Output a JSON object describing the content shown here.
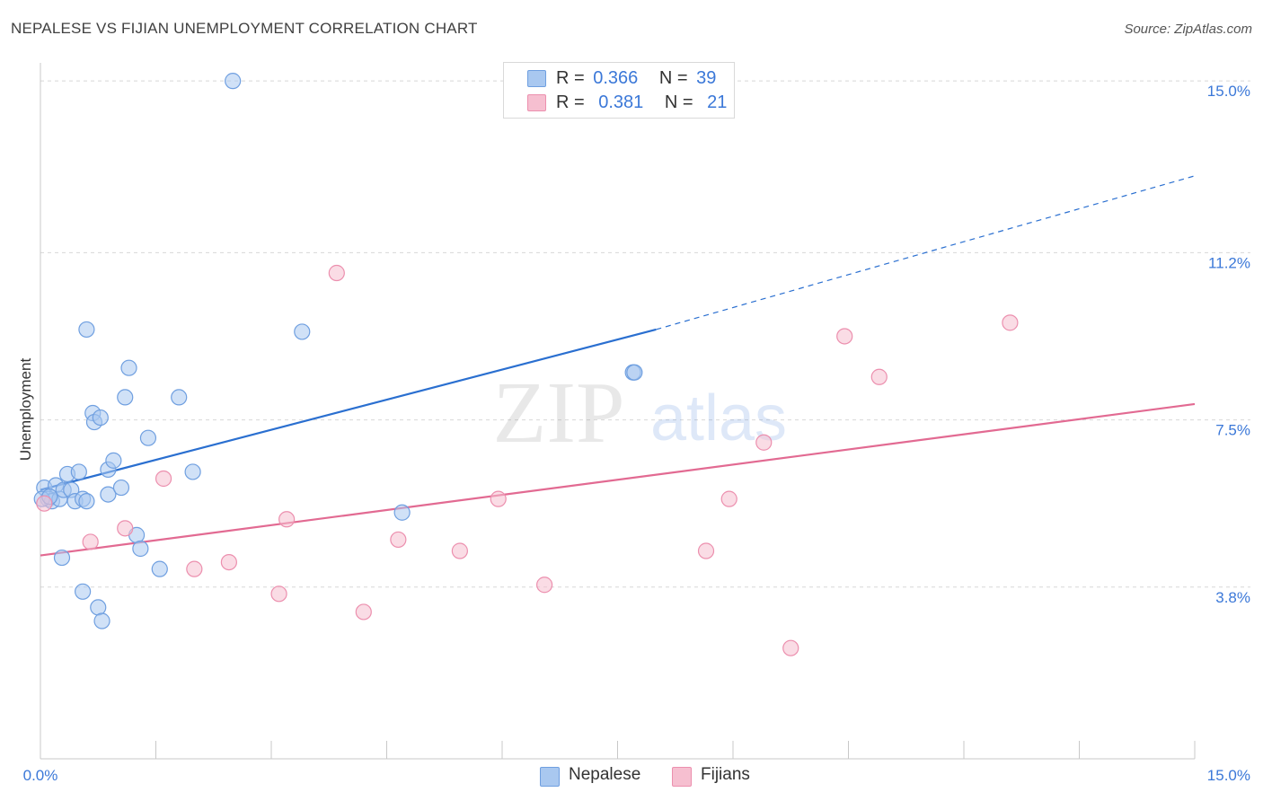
{
  "header": {
    "title": "NEPALESE VS FIJIAN UNEMPLOYMENT CORRELATION CHART",
    "source": "Source: ZipAtlas.com"
  },
  "watermark": {
    "zip": "ZIP",
    "atlas": "atlas"
  },
  "legend": {
    "nepalese": {
      "r_label": "R =",
      "r_value": "0.366",
      "n_label": "N =",
      "n_value": "39"
    },
    "fijians": {
      "r_label": "R =",
      "r_value": "0.381",
      "n_label": "N =",
      "n_value": "21"
    }
  },
  "bottom_legend": {
    "nepalese": "Nepalese",
    "fijians": "Fijians"
  },
  "colors": {
    "nepalese_fill": "#a9c8f0",
    "nepalese_stroke": "#6f9fe0",
    "nepalese_line": "#2a6fd0",
    "fijians_fill": "#f6bfd0",
    "fijians_stroke": "#ec8fae",
    "fijians_line": "#e26a92",
    "tick_text": "#3b78d8",
    "grid": "#d8d8d8"
  },
  "chart_data": {
    "type": "scatter",
    "title": "NEPALESE VS FIJIAN UNEMPLOYMENT CORRELATION CHART",
    "xlabel": "",
    "ylabel": "Unemployment",
    "xlim": [
      0,
      15
    ],
    "ylim": [
      0,
      15.4
    ],
    "x_tick_labels": [
      "0.0%",
      "15.0%"
    ],
    "y_ticks": [
      3.8,
      7.5,
      11.2,
      15.0
    ],
    "y_tick_labels": [
      "3.8%",
      "7.5%",
      "11.2%",
      "15.0%"
    ],
    "grid": true,
    "legend_position": "top-center",
    "series": [
      {
        "name": "Nepalese",
        "points": [
          [
            0.05,
            6.0
          ],
          [
            0.1,
            5.75
          ],
          [
            0.15,
            5.7
          ],
          [
            0.2,
            6.05
          ],
          [
            0.25,
            5.75
          ],
          [
            0.3,
            5.95
          ],
          [
            0.35,
            6.3
          ],
          [
            0.4,
            5.95
          ],
          [
            0.45,
            5.7
          ],
          [
            0.5,
            6.35
          ],
          [
            0.55,
            5.75
          ],
          [
            0.6,
            5.7
          ],
          [
            0.28,
            4.45
          ],
          [
            0.55,
            3.7
          ],
          [
            0.6,
            9.5
          ],
          [
            0.68,
            7.65
          ],
          [
            0.7,
            7.45
          ],
          [
            0.78,
            7.55
          ],
          [
            0.75,
            3.35
          ],
          [
            0.8,
            3.05
          ],
          [
            0.88,
            6.4
          ],
          [
            0.88,
            5.85
          ],
          [
            0.95,
            6.6
          ],
          [
            1.05,
            6.0
          ],
          [
            1.1,
            8.0
          ],
          [
            1.15,
            8.65
          ],
          [
            1.25,
            4.95
          ],
          [
            1.3,
            4.65
          ],
          [
            1.4,
            7.1
          ],
          [
            1.55,
            4.2
          ],
          [
            1.8,
            8.0
          ],
          [
            1.98,
            6.35
          ],
          [
            2.5,
            15.0
          ],
          [
            3.4,
            9.45
          ],
          [
            4.7,
            5.45
          ],
          [
            7.7,
            8.55
          ],
          [
            7.72,
            8.55
          ],
          [
            0.02,
            5.75
          ],
          [
            0.12,
            5.8
          ]
        ],
        "trend": {
          "x": [
            0,
            8.0
          ],
          "y": [
            5.95,
            9.5
          ],
          "extended_to": [
            15.0,
            12.9
          ]
        }
      },
      {
        "name": "Fijians",
        "points": [
          [
            0.05,
            5.65
          ],
          [
            0.65,
            4.8
          ],
          [
            1.1,
            5.1
          ],
          [
            1.6,
            6.2
          ],
          [
            2.0,
            4.2
          ],
          [
            2.45,
            4.35
          ],
          [
            3.1,
            3.65
          ],
          [
            3.2,
            5.3
          ],
          [
            3.85,
            10.75
          ],
          [
            4.2,
            3.25
          ],
          [
            4.65,
            4.85
          ],
          [
            5.45,
            4.6
          ],
          [
            5.95,
            5.75
          ],
          [
            6.55,
            3.85
          ],
          [
            8.65,
            4.6
          ],
          [
            8.95,
            5.75
          ],
          [
            9.4,
            7.0
          ],
          [
            9.75,
            2.45
          ],
          [
            10.45,
            9.35
          ],
          [
            10.9,
            8.45
          ],
          [
            12.6,
            9.65
          ]
        ],
        "trend": {
          "x": [
            0,
            15.0
          ],
          "y": [
            4.5,
            7.85
          ]
        }
      }
    ]
  }
}
